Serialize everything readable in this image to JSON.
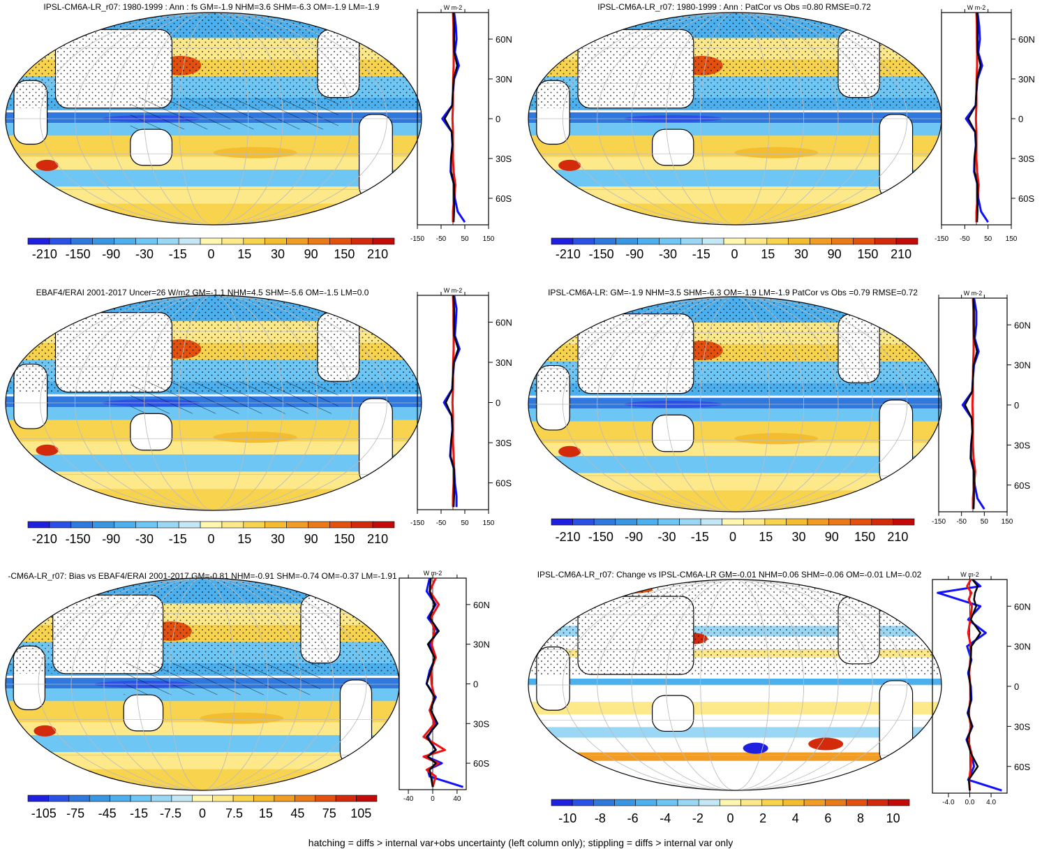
{
  "footer": "hatching = diffs > internal var+obs uncertainty (left column only); stippling = diffs > internal var only",
  "colors": {
    "neg": [
      "#1f1fe0",
      "#2a50e6",
      "#2f78dd",
      "#3896e3",
      "#4cb0ee",
      "#6dc6f4",
      "#9ad7f5",
      "#c4e7f6"
    ],
    "pos": [
      "#fff6b0",
      "#fde98a",
      "#f8d34e",
      "#f4bd2f",
      "#f09c25",
      "#ea7a18",
      "#e4510f",
      "#d32a0c",
      "#c40a08"
    ],
    "blue_line": "#1010ff",
    "red_line": "#ee1111",
    "black_line": "#000000"
  },
  "panels": [
    {
      "id": "p1",
      "title": "IPSL-CM6A-LR_r07: 1980-1999 : Ann : fs GM=-1.9 NHM=3.6 SHM=-6.3 OM=-1.9 LM=-1.9",
      "colorbar_labels": [
        "-210",
        "-150",
        "-90",
        "-30",
        "-15",
        "0",
        "15",
        "30",
        "90",
        "150",
        "210"
      ],
      "profile_units": "W m-2",
      "profile_xticks": [
        "-150",
        "-50",
        "50",
        "150"
      ],
      "profile_xrange": [
        -150,
        150
      ],
      "lat_labels": [
        "60N",
        "30N",
        "0",
        "30S",
        "60S"
      ]
    },
    {
      "id": "p2",
      "title": "IPSL-CM6A-LR_r07: 1980-1999 : Ann : PatCor vs Obs =0.80 RMSE=0.72",
      "colorbar_labels": [
        "-210",
        "-150",
        "-90",
        "-30",
        "-15",
        "0",
        "15",
        "30",
        "90",
        "150",
        "210"
      ],
      "profile_units": "W m-2",
      "profile_xticks": [
        "-150",
        "-50",
        "50",
        "150"
      ],
      "profile_xrange": [
        -150,
        150
      ],
      "lat_labels": [
        "60N",
        "30N",
        "0",
        "30S",
        "60S"
      ]
    },
    {
      "id": "p3",
      "title": "EBAF4/ERAI 2001-2017 Uncer=26 W/m2 GM=-1.1 NHM=4.5 SHM=-5.6 OM=-1.5 LM=0.0",
      "colorbar_labels": [
        "-210",
        "-150",
        "-90",
        "-30",
        "-15",
        "0",
        "15",
        "30",
        "90",
        "150",
        "210"
      ],
      "profile_units": "W m-2",
      "profile_xticks": [
        "-150",
        "-50",
        "50",
        "150"
      ],
      "profile_xrange": [
        -150,
        150
      ],
      "lat_labels": [
        "60N",
        "30N",
        "0",
        "30S",
        "60S"
      ]
    },
    {
      "id": "p4",
      "title": "IPSL-CM6A-LR: GM=-1.9 NHM=3.5 SHM=-6.3 OM=-1.9 LM=-1.9 PatCor vs Obs =0.79 RMSE=0.72",
      "colorbar_labels": [
        "-210",
        "-150",
        "-90",
        "-30",
        "-15",
        "0",
        "15",
        "30",
        "90",
        "150",
        "210"
      ],
      "profile_units": "W m-2",
      "profile_xticks": [
        "-150",
        "-50",
        "50",
        "150"
      ],
      "profile_xrange": [
        -150,
        150
      ],
      "lat_labels": [
        "60N",
        "30N",
        "0",
        "30S",
        "60S"
      ]
    },
    {
      "id": "p5",
      "title": "-CM6A-LR_r07: Bias vs EBAF4/ERAI 2001-2017 GM=-0.81 NHM=-0.91 SHM=-0.74 OM=-0.37 LM=-1.91",
      "colorbar_labels": [
        "-105",
        "-75",
        "-45",
        "-15",
        "-7.5",
        "0",
        "7.5",
        "15",
        "45",
        "75",
        "105"
      ],
      "profile_units": "W m-2",
      "profile_xticks": [
        "-40",
        "0",
        "40"
      ],
      "profile_xrange": [
        -55,
        55
      ],
      "lat_labels": [
        "60N",
        "30N",
        "0",
        "30S",
        "60S"
      ]
    },
    {
      "id": "p6",
      "title": "IPSL-CM6A-LR_r07: Change vs IPSL-CM6A-LR GM=-0.01 NHM=0.06 SHM=-0.06 OM=-0.01 LM=-0.02",
      "colorbar_labels": [
        "-10",
        "-8",
        "-6",
        "-4",
        "-2",
        "0",
        "2",
        "4",
        "6",
        "8",
        "10"
      ],
      "profile_units": "W m-2",
      "profile_xticks": [
        "-4.0",
        "0.0",
        "4.0"
      ],
      "profile_xrange": [
        -7,
        7
      ],
      "lat_labels": [
        "60N",
        "30N",
        "0",
        "30S",
        "60S"
      ]
    }
  ],
  "chart_data": [
    {
      "type": "map",
      "title": "IPSL-CM6A-LR_r07: 1980-1999 : Ann : fs GM=-1.9 NHM=3.6 SHM=-6.3 OM=-1.9 LM=-1.9",
      "colorbar": [
        -210,
        -150,
        -90,
        -30,
        -15,
        0,
        15,
        30,
        90,
        150,
        210
      ],
      "profile": {
        "lat": [
          80,
          70,
          60,
          50,
          40,
          30,
          20,
          10,
          0,
          -10,
          -20,
          -30,
          -40,
          -50,
          -60,
          -70,
          -78
        ],
        "blue": [
          5,
          12,
          15,
          8,
          25,
          5,
          0,
          -3,
          -45,
          -5,
          -2,
          -8,
          -10,
          5,
          8,
          20,
          50
        ],
        "black": [
          2,
          5,
          5,
          5,
          18,
          3,
          0,
          -3,
          -35,
          -5,
          -2,
          -8,
          -8,
          5,
          5,
          5,
          3
        ],
        "red": [
          0,
          2,
          2,
          3,
          3,
          1,
          0,
          0,
          -2,
          0,
          0,
          0,
          3,
          10,
          5,
          0,
          0
        ]
      }
    },
    {
      "type": "map",
      "title": "IPSL-CM6A-LR_r07: 1980-1999 : Ann : PatCor vs Obs =0.80 RMSE=0.72",
      "colorbar": [
        -210,
        -150,
        -90,
        -30,
        -15,
        0,
        15,
        30,
        90,
        150,
        210
      ],
      "profile": {
        "lat": [
          80,
          70,
          60,
          50,
          40,
          30,
          20,
          10,
          0,
          -10,
          -20,
          -30,
          -40,
          -50,
          -60,
          -70,
          -78
        ],
        "blue": [
          5,
          12,
          15,
          8,
          25,
          5,
          0,
          -3,
          -45,
          -5,
          -2,
          -8,
          -10,
          5,
          8,
          20,
          50
        ],
        "black": [
          2,
          5,
          5,
          5,
          18,
          3,
          0,
          -3,
          -35,
          -5,
          -2,
          -8,
          -8,
          5,
          5,
          5,
          3
        ],
        "red": [
          0,
          2,
          2,
          3,
          3,
          1,
          0,
          0,
          -2,
          0,
          0,
          0,
          3,
          10,
          5,
          0,
          0
        ]
      }
    },
    {
      "type": "map",
      "title": "EBAF4/ERAI 2001-2017 Uncer=26 W/m2 GM=-1.1 NHM=4.5 SHM=-5.6 OM=-1.5 LM=0.0",
      "colorbar": [
        -210,
        -150,
        -90,
        -30,
        -15,
        0,
        15,
        30,
        90,
        150,
        210
      ],
      "profile": {
        "lat": [
          80,
          70,
          60,
          50,
          40,
          30,
          20,
          10,
          0,
          -10,
          -20,
          -30,
          -40,
          -50,
          -60,
          -70,
          -78
        ],
        "blue": [
          5,
          15,
          12,
          8,
          28,
          5,
          0,
          -3,
          -38,
          -5,
          -2,
          -8,
          -12,
          5,
          8,
          15,
          15
        ],
        "black": [
          2,
          5,
          5,
          5,
          22,
          3,
          0,
          -3,
          -30,
          -5,
          -2,
          -8,
          -10,
          5,
          5,
          5,
          3
        ],
        "red": [
          0,
          2,
          2,
          3,
          3,
          1,
          0,
          0,
          -2,
          0,
          0,
          0,
          3,
          5,
          3,
          0,
          0
        ]
      }
    },
    {
      "type": "map",
      "title": "IPSL-CM6A-LR: GM=-1.9 NHM=3.5 SHM=-6.3 OM=-1.9 LM=-1.9 PatCor vs Obs =0.79 RMSE=0.72",
      "colorbar": [
        -210,
        -150,
        -90,
        -30,
        -15,
        0,
        15,
        30,
        90,
        150,
        210
      ],
      "profile": {
        "lat": [
          80,
          70,
          60,
          50,
          40,
          30,
          20,
          10,
          0,
          -10,
          -20,
          -30,
          -40,
          -50,
          -60,
          -70,
          -78
        ],
        "blue": [
          5,
          15,
          15,
          8,
          25,
          5,
          0,
          -3,
          -45,
          -5,
          -2,
          -8,
          -10,
          5,
          8,
          20,
          50
        ],
        "black": [
          2,
          5,
          5,
          5,
          18,
          3,
          0,
          -3,
          -35,
          -5,
          -2,
          -8,
          -8,
          5,
          5,
          5,
          3
        ],
        "red": [
          0,
          2,
          2,
          3,
          3,
          1,
          0,
          0,
          -2,
          0,
          0,
          0,
          3,
          10,
          5,
          0,
          0
        ]
      }
    },
    {
      "type": "map",
      "title": "-CM6A-LR_r07: Bias vs EBAF4/ERAI 2001-2017 GM=-0.81 NHM=-0.91 SHM=-0.74 OM=-0.37 LM=-1.91",
      "colorbar": [
        -105,
        -75,
        -45,
        -15,
        -7.5,
        0,
        7.5,
        15,
        45,
        75,
        105
      ],
      "profile": {
        "lat": [
          80,
          70,
          60,
          50,
          40,
          30,
          20,
          10,
          0,
          -10,
          -20,
          -30,
          -40,
          -50,
          -55,
          -60,
          -65,
          -70,
          -78
        ],
        "blue": [
          -5,
          -10,
          5,
          -8,
          8,
          -5,
          5,
          -5,
          -10,
          5,
          -5,
          5,
          -8,
          5,
          -10,
          15,
          -8,
          -5,
          50
        ],
        "black": [
          -3,
          -5,
          3,
          -5,
          10,
          -8,
          3,
          -3,
          -10,
          3,
          -3,
          8,
          -10,
          5,
          -8,
          5,
          -5,
          -3,
          0
        ],
        "red": [
          5,
          -5,
          10,
          -3,
          3,
          -2,
          5,
          -3,
          -2,
          3,
          -5,
          3,
          -15,
          20,
          -15,
          10,
          -10,
          5,
          0
        ]
      }
    },
    {
      "type": "map",
      "title": "IPSL-CM6A-LR_r07: Change vs IPSL-CM6A-LR GM=-0.01 NHM=0.06 SHM=-0.06 OM=-0.01 LM=-0.02",
      "colorbar": [
        -10,
        -8,
        -6,
        -4,
        -2,
        0,
        2,
        4,
        6,
        8,
        10
      ],
      "profile": {
        "lat": [
          80,
          75,
          70,
          65,
          60,
          50,
          40,
          30,
          20,
          10,
          0,
          -10,
          -20,
          -30,
          -40,
          -50,
          -60,
          -70,
          -78
        ],
        "blue": [
          0.5,
          2,
          -6,
          -2,
          2,
          -0.3,
          3,
          -0.5,
          0.3,
          -0.3,
          0.2,
          0.3,
          -0.4,
          0.5,
          -0.6,
          0.3,
          0.8,
          -0.3,
          6
        ],
        "black": [
          0.5,
          1.5,
          1,
          0.8,
          1.2,
          0.2,
          2,
          0.3,
          0.2,
          -0.2,
          0.1,
          0.2,
          -0.3,
          0.4,
          -0.5,
          0.2,
          1.5,
          -0.2,
          0
        ],
        "red": [
          0.2,
          -0.5,
          0.3,
          -0.2,
          0.4,
          0.1,
          -0.3,
          0.2,
          0.1,
          -0.1,
          0.1,
          0.1,
          -0.2,
          0.2,
          -0.3,
          0.3,
          0.2,
          -0.1,
          0
        ]
      }
    }
  ]
}
